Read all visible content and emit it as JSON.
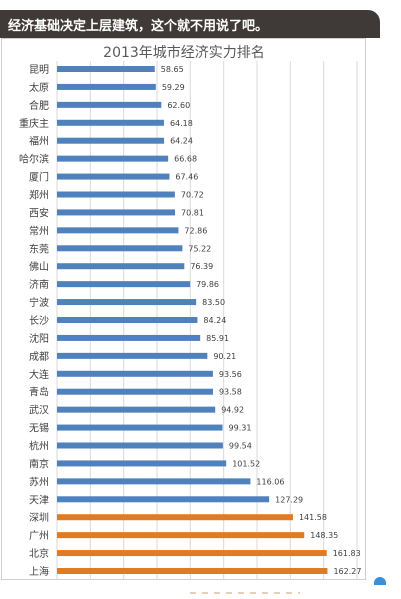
{
  "caption": "经济基础决定上层建筑，这个就不用说了吧。",
  "colors": {
    "caption_bg": "#3f3a37",
    "bar_blue": "#4f81bd",
    "bar_orange": "#e07b22",
    "grid": "#d9d9d9"
  },
  "chart_data": {
    "type": "bar",
    "orientation": "horizontal",
    "title": "2013年城市经济实力排名",
    "xlabel": "",
    "ylabel": "",
    "grid": true,
    "legend": "none",
    "xlim": [
      0,
      180
    ],
    "categories": [
      "昆明",
      "太原",
      "合肥",
      "重庆主",
      "福州",
      "哈尔滨",
      "厦门",
      "郑州",
      "西安",
      "常州",
      "东莞",
      "佛山",
      "济南",
      "宁波",
      "长沙",
      "沈阳",
      "成都",
      "大连",
      "青岛",
      "武汉",
      "无锡",
      "杭州",
      "南京",
      "苏州",
      "天津",
      "深圳",
      "广州",
      "北京",
      "上海"
    ],
    "values": [
      58.65,
      59.29,
      62.6,
      64.18,
      64.24,
      66.68,
      67.46,
      70.72,
      70.81,
      72.86,
      75.22,
      76.39,
      79.86,
      83.5,
      84.24,
      85.91,
      90.21,
      93.56,
      93.58,
      94.92,
      99.31,
      99.54,
      101.52,
      116.06,
      127.29,
      141.58,
      148.35,
      161.83,
      162.27
    ],
    "value_labels": [
      "58.65",
      "59.29",
      "62.60",
      "64.18",
      "64.24",
      "66.68",
      "67.46",
      "70.72",
      "70.81",
      "72.86",
      "75.22",
      "76.39",
      "79.86",
      "83.50",
      "84.24",
      "85.91",
      "90.21",
      "93.56",
      "93.58",
      "94.92",
      "99.31",
      "99.54",
      "101.52",
      "116.06",
      "127.29",
      "141.58",
      "148.35",
      "161.83",
      "162.27"
    ],
    "bar_colors": [
      "#4f81bd",
      "#4f81bd",
      "#4f81bd",
      "#4f81bd",
      "#4f81bd",
      "#4f81bd",
      "#4f81bd",
      "#4f81bd",
      "#4f81bd",
      "#4f81bd",
      "#4f81bd",
      "#4f81bd",
      "#4f81bd",
      "#4f81bd",
      "#4f81bd",
      "#4f81bd",
      "#4f81bd",
      "#4f81bd",
      "#4f81bd",
      "#4f81bd",
      "#4f81bd",
      "#4f81bd",
      "#4f81bd",
      "#4f81bd",
      "#4f81bd",
      "#e07b22",
      "#e07b22",
      "#e07b22",
      "#e07b22"
    ]
  }
}
